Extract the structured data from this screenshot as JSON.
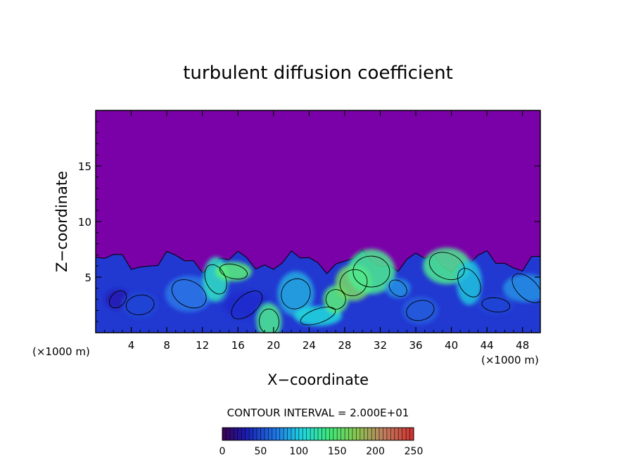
{
  "chart_data": {
    "type": "heatmap",
    "title": "turbulent diffusion coefficient",
    "xlabel": "X−coordinate",
    "ylabel": "Z−coordinate",
    "x_unit": "(×1000 m)",
    "x_unit_right": "(×1000 m)",
    "xlim": [
      0,
      50
    ],
    "ylim": [
      0,
      20
    ],
    "xticks": [
      4,
      8,
      12,
      16,
      20,
      24,
      28,
      32,
      36,
      40,
      44,
      48
    ],
    "yticks": [
      5,
      10,
      15
    ],
    "contour_interval_text": "CONTOUR INTERVAL = 2.000E+01",
    "contour_interval": 20,
    "colorbar": {
      "min": 0,
      "max": 250,
      "ticks": [
        0,
        50,
        100,
        150,
        200,
        250
      ]
    },
    "background_value": 0,
    "turbulent_layer_top": 7,
    "colors": {
      "background": "#7a00a8",
      "low": "#2020c8",
      "mid": "#2a80e0",
      "high": "#20e8d8",
      "peak": "#a0ff60"
    },
    "eddies": [
      {
        "x": 2.5,
        "z": 3.0,
        "value": 20
      },
      {
        "x": 5.0,
        "z": 2.5,
        "value": 40
      },
      {
        "x": 10.5,
        "z": 3.5,
        "value": 60
      },
      {
        "x": 13.5,
        "z": 4.8,
        "value": 110
      },
      {
        "x": 15.5,
        "z": 5.5,
        "value": 140
      },
      {
        "x": 17.0,
        "z": 2.5,
        "value": 30
      },
      {
        "x": 19.5,
        "z": 1.0,
        "value": 130
      },
      {
        "x": 22.5,
        "z": 3.5,
        "value": 80
      },
      {
        "x": 25.0,
        "z": 1.5,
        "value": 100
      },
      {
        "x": 27.0,
        "z": 3.0,
        "value": 140
      },
      {
        "x": 29.0,
        "z": 4.5,
        "value": 160
      },
      {
        "x": 31.0,
        "z": 5.5,
        "value": 130
      },
      {
        "x": 34.0,
        "z": 4.0,
        "value": 70
      },
      {
        "x": 36.5,
        "z": 2.0,
        "value": 50
      },
      {
        "x": 39.5,
        "z": 6.0,
        "value": 130
      },
      {
        "x": 42.0,
        "z": 4.5,
        "value": 90
      },
      {
        "x": 45.0,
        "z": 2.5,
        "value": 40
      },
      {
        "x": 48.5,
        "z": 4.0,
        "value": 70
      }
    ]
  }
}
